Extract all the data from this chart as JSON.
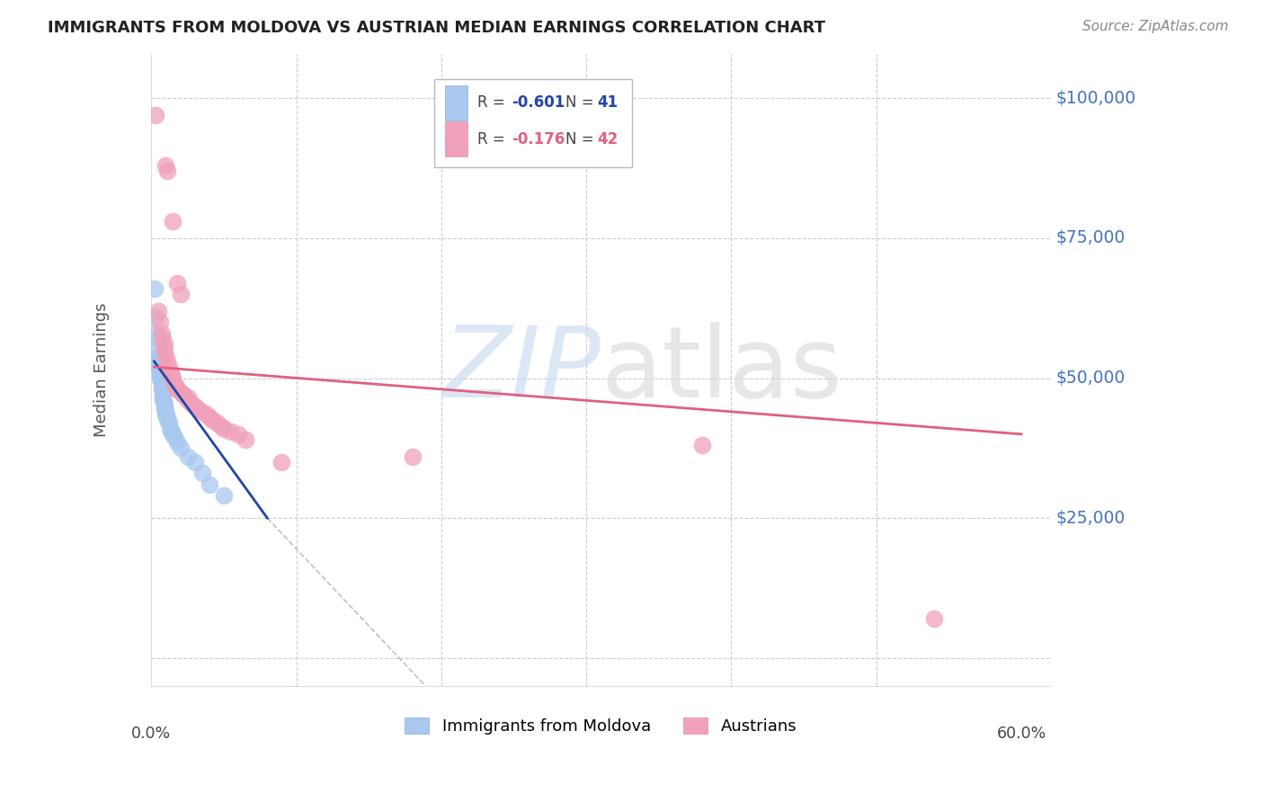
{
  "title": "IMMIGRANTS FROM MOLDOVA VS AUSTRIAN MEDIAN EARNINGS CORRELATION CHART",
  "source": "Source: ZipAtlas.com",
  "ylabel": "Median Earnings",
  "xlim": [
    0.0,
    0.62
  ],
  "ylim": [
    -5000,
    108000
  ],
  "watermark_zip": "ZIP",
  "watermark_atlas": "atlas",
  "legend_r1": "R = ",
  "legend_v1": "-0.601",
  "legend_n1_label": "N = ",
  "legend_n1": "41",
  "legend_r2": "R = ",
  "legend_v2": "-0.176",
  "legend_n2_label": "N = ",
  "legend_n2": "42",
  "blue_color": "#A8C8F0",
  "pink_color": "#F0A0B8",
  "blue_line_color": "#2244AA",
  "pink_line_color": "#E06080",
  "dashed_line_color": "#C0C0C0",
  "scatter_blue": [
    [
      0.002,
      66000
    ],
    [
      0.003,
      61000
    ],
    [
      0.003,
      58000
    ],
    [
      0.004,
      57000
    ],
    [
      0.004,
      55000
    ],
    [
      0.005,
      54000
    ],
    [
      0.005,
      53000
    ],
    [
      0.005,
      52500
    ],
    [
      0.005,
      52000
    ],
    [
      0.006,
      51500
    ],
    [
      0.006,
      51000
    ],
    [
      0.006,
      50500
    ],
    [
      0.006,
      50000
    ],
    [
      0.007,
      49500
    ],
    [
      0.007,
      49000
    ],
    [
      0.007,
      48500
    ],
    [
      0.007,
      48000
    ],
    [
      0.008,
      47500
    ],
    [
      0.008,
      47000
    ],
    [
      0.008,
      46500
    ],
    [
      0.008,
      46000
    ],
    [
      0.009,
      45500
    ],
    [
      0.009,
      45000
    ],
    [
      0.009,
      44500
    ],
    [
      0.01,
      44000
    ],
    [
      0.01,
      43500
    ],
    [
      0.011,
      43000
    ],
    [
      0.011,
      42500
    ],
    [
      0.012,
      42000
    ],
    [
      0.013,
      41000
    ],
    [
      0.014,
      40500
    ],
    [
      0.015,
      40000
    ],
    [
      0.016,
      39500
    ],
    [
      0.018,
      38500
    ],
    [
      0.02,
      37500
    ],
    [
      0.022,
      47000
    ],
    [
      0.025,
      36000
    ],
    [
      0.03,
      35000
    ],
    [
      0.035,
      33000
    ],
    [
      0.04,
      31000
    ],
    [
      0.05,
      29000
    ]
  ],
  "scatter_pink": [
    [
      0.003,
      97000
    ],
    [
      0.01,
      88000
    ],
    [
      0.011,
      87000
    ],
    [
      0.015,
      78000
    ],
    [
      0.018,
      67000
    ],
    [
      0.02,
      65000
    ],
    [
      0.005,
      62000
    ],
    [
      0.006,
      60000
    ],
    [
      0.007,
      58000
    ],
    [
      0.008,
      57000
    ],
    [
      0.009,
      56000
    ],
    [
      0.009,
      55000
    ],
    [
      0.01,
      54000
    ],
    [
      0.011,
      53000
    ],
    [
      0.012,
      52000
    ],
    [
      0.013,
      51000
    ],
    [
      0.014,
      50500
    ],
    [
      0.015,
      50000
    ],
    [
      0.016,
      49000
    ],
    [
      0.017,
      48500
    ],
    [
      0.018,
      48000
    ],
    [
      0.02,
      47500
    ],
    [
      0.022,
      47000
    ],
    [
      0.025,
      46500
    ],
    [
      0.025,
      46000
    ],
    [
      0.028,
      45500
    ],
    [
      0.03,
      45000
    ],
    [
      0.032,
      44500
    ],
    [
      0.035,
      44000
    ],
    [
      0.038,
      43500
    ],
    [
      0.04,
      43000
    ],
    [
      0.042,
      42500
    ],
    [
      0.045,
      42000
    ],
    [
      0.048,
      41500
    ],
    [
      0.05,
      41000
    ],
    [
      0.055,
      40500
    ],
    [
      0.06,
      40000
    ],
    [
      0.065,
      39000
    ],
    [
      0.38,
      38000
    ],
    [
      0.18,
      36000
    ],
    [
      0.54,
      7000
    ],
    [
      0.09,
      35000
    ]
  ],
  "blue_trendline": [
    [
      0.002,
      53000
    ],
    [
      0.08,
      25000
    ]
  ],
  "pink_trendline": [
    [
      0.002,
      52000
    ],
    [
      0.6,
      40000
    ]
  ],
  "dashed_trendline": [
    [
      0.08,
      25000
    ],
    [
      0.2,
      -8000
    ]
  ],
  "background_color": "#FFFFFF",
  "title_color": "#222222",
  "source_color": "#888888",
  "ytick_color": "#4472C4",
  "xtick_color": "#444444",
  "grid_color": "#CCCCCC",
  "ytick_positions": [
    0,
    25000,
    50000,
    75000,
    100000
  ],
  "ytick_labels": [
    "",
    "$25,000",
    "$50,000",
    "$75,000",
    "$100,000"
  ],
  "xtick_positions": [
    0.0,
    0.1,
    0.2,
    0.3,
    0.4,
    0.5,
    0.6
  ],
  "xtick_show": [
    0.0,
    0.6
  ]
}
